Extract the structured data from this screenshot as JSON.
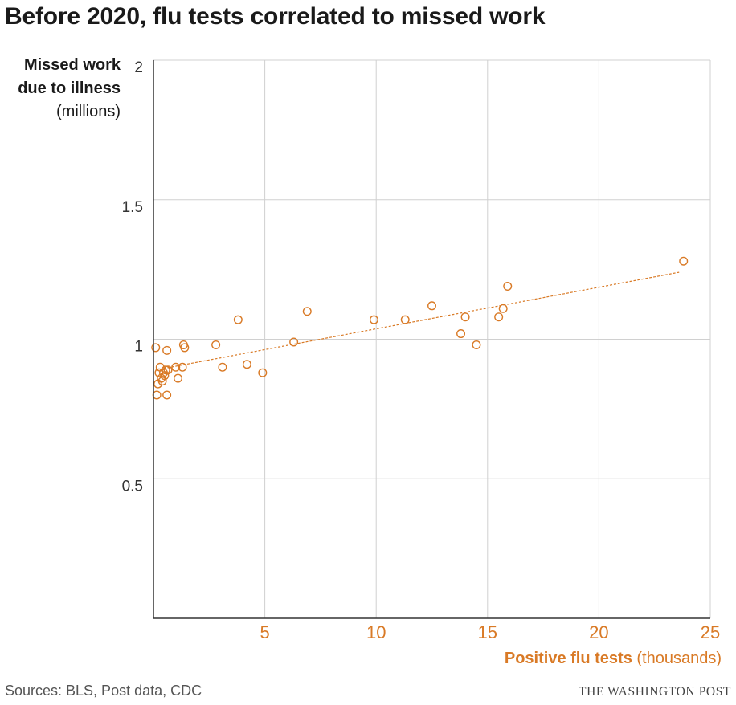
{
  "title": "Before 2020, flu tests correlated to missed work",
  "y_axis": {
    "label_line1": "Missed work",
    "label_line2": "due to illness",
    "unit": "(millions)"
  },
  "x_axis": {
    "label": "Positive flu tests",
    "unit": "(thousands)"
  },
  "source": "Sources: BLS, Post data, CDC",
  "credit": "THE WASHINGTON POST",
  "colors": {
    "accent": "#d97a26",
    "grid": "#d0d0d0",
    "axis": "#333333"
  },
  "chart_data": {
    "type": "scatter",
    "xlabel": "Positive flu tests (thousands)",
    "ylabel": "Missed work due to illness (millions)",
    "xlim": [
      0,
      25
    ],
    "ylim": [
      0,
      2
    ],
    "x_ticks": [
      5,
      10,
      15,
      20,
      25
    ],
    "x_tick_labels": [
      "5",
      "10",
      "15",
      "20",
      "25"
    ],
    "y_ticks": [
      0.5,
      1,
      1.5,
      2
    ],
    "y_tick_labels": [
      "0.5",
      "1",
      "1.5",
      "2"
    ],
    "grid": true,
    "trendline": {
      "style": "dashed",
      "from": [
        0.1,
        0.89
      ],
      "to": [
        23.6,
        1.24
      ]
    },
    "points": [
      {
        "x": 0.1,
        "y": 0.97
      },
      {
        "x": 0.15,
        "y": 0.8
      },
      {
        "x": 0.2,
        "y": 0.84
      },
      {
        "x": 0.25,
        "y": 0.88
      },
      {
        "x": 0.3,
        "y": 0.9
      },
      {
        "x": 0.35,
        "y": 0.86
      },
      {
        "x": 0.4,
        "y": 0.85
      },
      {
        "x": 0.45,
        "y": 0.88
      },
      {
        "x": 0.5,
        "y": 0.87
      },
      {
        "x": 0.55,
        "y": 0.89
      },
      {
        "x": 0.6,
        "y": 0.96
      },
      {
        "x": 0.6,
        "y": 0.8
      },
      {
        "x": 0.65,
        "y": 0.89
      },
      {
        "x": 1.0,
        "y": 0.9
      },
      {
        "x": 1.1,
        "y": 0.86
      },
      {
        "x": 1.3,
        "y": 0.9
      },
      {
        "x": 1.35,
        "y": 0.98
      },
      {
        "x": 1.4,
        "y": 0.97
      },
      {
        "x": 2.8,
        "y": 0.98
      },
      {
        "x": 3.1,
        "y": 0.9
      },
      {
        "x": 3.8,
        "y": 1.07
      },
      {
        "x": 4.2,
        "y": 0.91
      },
      {
        "x": 4.9,
        "y": 0.88
      },
      {
        "x": 6.3,
        "y": 0.99
      },
      {
        "x": 6.9,
        "y": 1.1
      },
      {
        "x": 9.9,
        "y": 1.07
      },
      {
        "x": 11.3,
        "y": 1.07
      },
      {
        "x": 12.5,
        "y": 1.12
      },
      {
        "x": 13.8,
        "y": 1.02
      },
      {
        "x": 14.0,
        "y": 1.08
      },
      {
        "x": 14.5,
        "y": 0.98
      },
      {
        "x": 15.5,
        "y": 1.08
      },
      {
        "x": 15.7,
        "y": 1.11
      },
      {
        "x": 15.9,
        "y": 1.19
      },
      {
        "x": 23.8,
        "y": 1.28
      }
    ]
  }
}
